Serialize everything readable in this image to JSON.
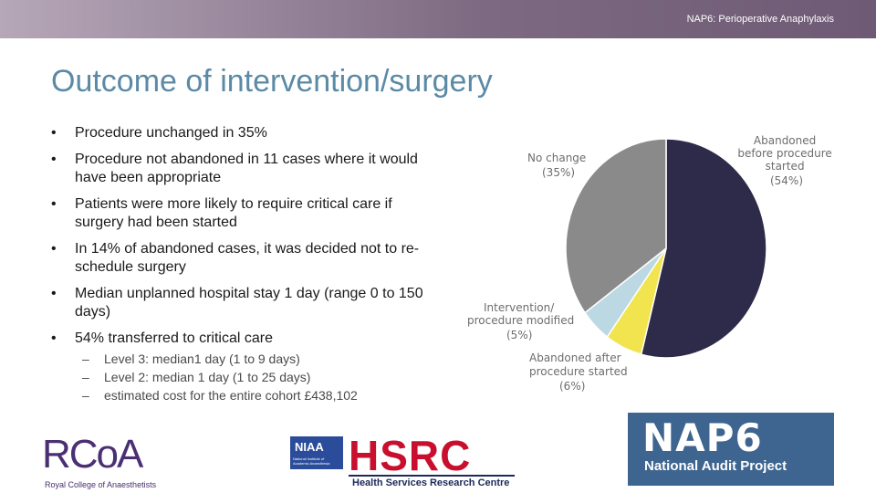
{
  "header": {
    "text": "NAP6: Perioperative Anaphylaxis"
  },
  "slide": {
    "title": "Outcome of intervention/surgery",
    "bullet_marker": "•",
    "dash_marker": "–",
    "bullets": [
      {
        "text": "Procedure unchanged in 35%"
      },
      {
        "text": "Procedure not abandoned in 11 cases where it would have been appropriate"
      },
      {
        "text": "Patients were more likely to require critical care if surgery had been started"
      },
      {
        "text": "In 14% of abandoned cases, it was decided not to re-schedule surgery"
      },
      {
        "text": "Median unplanned hospital stay 1 day (range 0 to 150 days)"
      },
      {
        "text": "54% transferred to critical care"
      }
    ],
    "sub_bullets": [
      {
        "text": "Level 3: median1 day (1 to 9 days)"
      },
      {
        "text": "Level 2: median 1 day (1 to 25 days)"
      },
      {
        "text": "estimated cost for the entire cohort £438,102"
      }
    ]
  },
  "chart_data": {
    "type": "pie",
    "slices": [
      {
        "label": "Abandoned before procedure started",
        "value": 54,
        "pct_label": "(54%)",
        "color": "#2e2a4a"
      },
      {
        "label": "Abandoned after procedure started",
        "value": 6,
        "pct_label": "(6%)",
        "color": "#f2e44e"
      },
      {
        "label": "Intervention/ procedure modified",
        "value": 5,
        "pct_label": "(5%)",
        "color": "#bcd8e3"
      },
      {
        "label": "No change",
        "value": 35,
        "pct_label": "(35%)",
        "color": "#8a8a8a"
      }
    ],
    "label_lines": {
      "abandoned_before": [
        "Abandoned",
        "before procedure",
        "started",
        "(54%)"
      ],
      "abandoned_after": [
        "Abandoned after",
        "procedure started",
        "(6%)"
      ],
      "modified": [
        "Intervention/",
        "procedure modified",
        "(5%)"
      ],
      "no_change": [
        "No change",
        "(35%)"
      ]
    }
  },
  "logos": {
    "rcoa": {
      "mark": "RCoA",
      "name": "Royal College of Anaesthetists",
      "color": "#4a2f73"
    },
    "hsrc": {
      "niaa": "NIAA",
      "niaa_sub": "National Institute of Academic Anaesthesia",
      "letters": "HSRC",
      "name": "Health Services Research Centre",
      "color": "#c8102e"
    },
    "nap6": {
      "mark": "NAP6",
      "name": "National Audit Project",
      "bg": "#3d6590"
    }
  }
}
